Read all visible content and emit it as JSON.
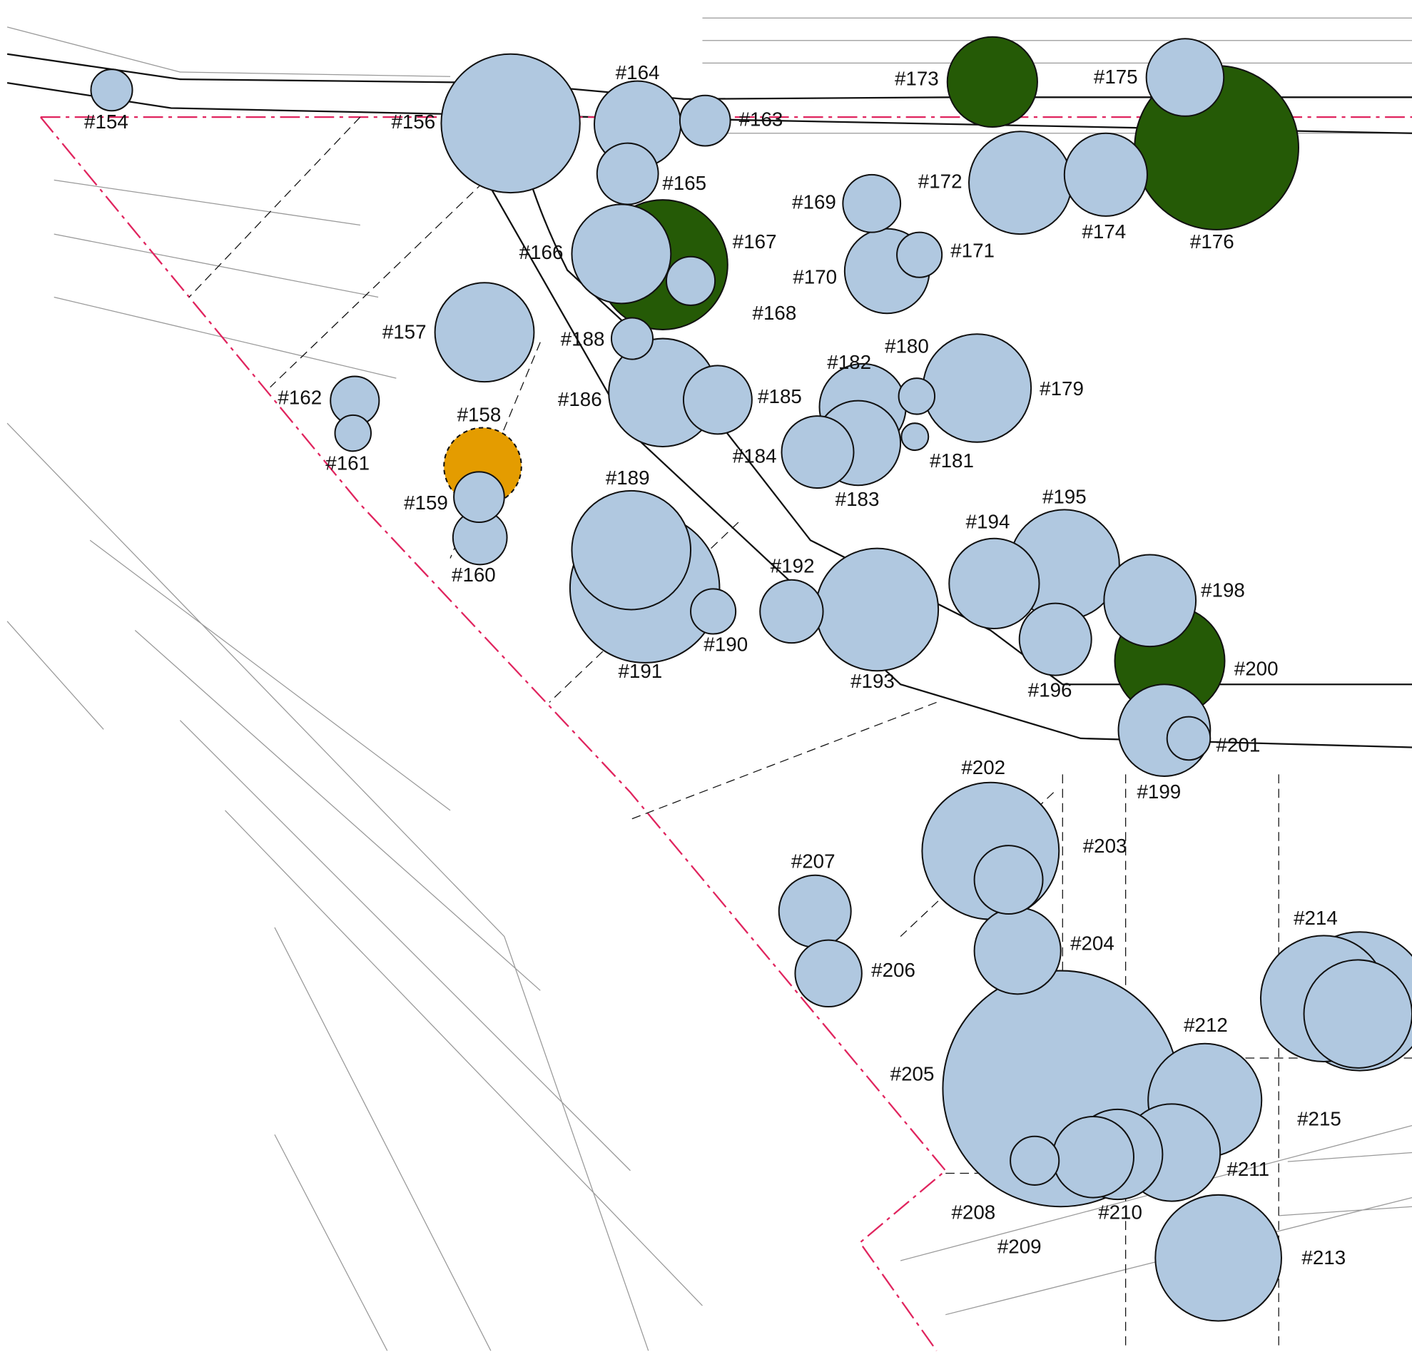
{
  "labels": [
    "#154",
    "#156",
    "#157",
    "#158",
    "#159",
    "#160",
    "#161",
    "#162",
    "#163",
    "#164",
    "#165",
    "#166",
    "#167",
    "#168",
    "#169",
    "#170",
    "#171",
    "#172",
    "#173",
    "#174",
    "#175",
    "#176",
    "#179",
    "#180",
    "#181",
    "#182",
    "#183",
    "#184",
    "#185",
    "#186",
    "#188",
    "#189",
    "#190",
    "#191",
    "#192",
    "#193",
    "#194",
    "#195",
    "#196",
    "#198",
    "#199",
    "#200",
    "#201",
    "#202",
    "#203",
    "#204",
    "#205",
    "#206",
    "#207",
    "#208",
    "#209",
    "#210",
    "#211",
    "#212",
    "#213",
    "#214",
    "#215"
  ]
}
